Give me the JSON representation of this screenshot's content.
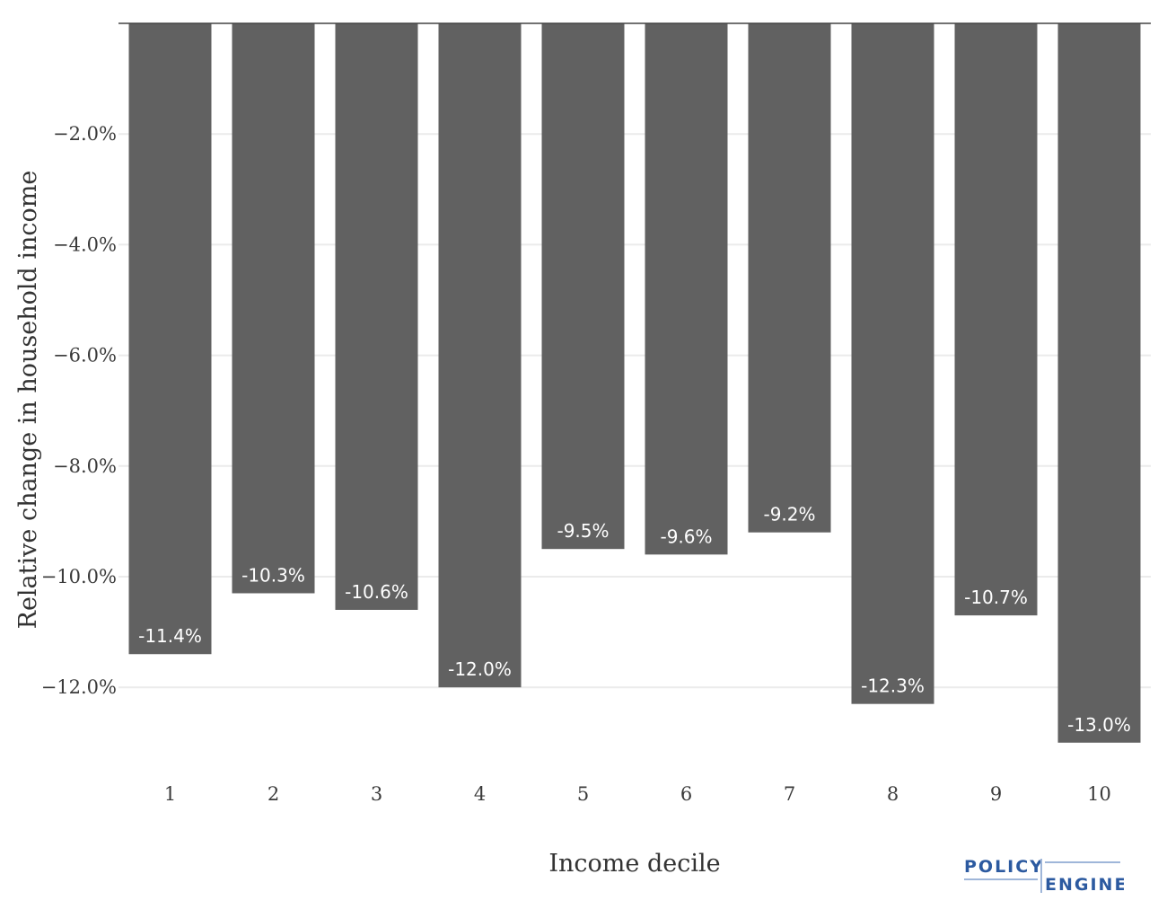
{
  "chart_data": {
    "type": "bar",
    "categories": [
      "1",
      "2",
      "3",
      "4",
      "5",
      "6",
      "7",
      "8",
      "9",
      "10"
    ],
    "values": [
      -11.4,
      -10.3,
      -10.6,
      -12.0,
      -9.5,
      -9.6,
      -9.2,
      -12.3,
      -10.7,
      -13.0
    ],
    "data_labels": [
      "-11.4%",
      "-10.3%",
      "-10.6%",
      "-12.0%",
      "-9.5%",
      "-9.6%",
      "-9.2%",
      "-12.3%",
      "-10.7%",
      "-13.0%"
    ],
    "title": "",
    "xlabel": "Income decile",
    "ylabel": "Relative change in household income",
    "ylim": [
      -13.0,
      0
    ],
    "yticks": [
      -2,
      -4,
      -6,
      -8,
      -10,
      -12
    ],
    "ytick_labels": [
      "−2.0%",
      "−4.0%",
      "−6.0%",
      "−8.0%",
      "−10.0%",
      "−12.0%"
    ],
    "grid": true,
    "bar_color": "#616161"
  },
  "logo": {
    "line1": "POLICY",
    "line2": "ENGINE",
    "color": "#2c5aa0"
  }
}
